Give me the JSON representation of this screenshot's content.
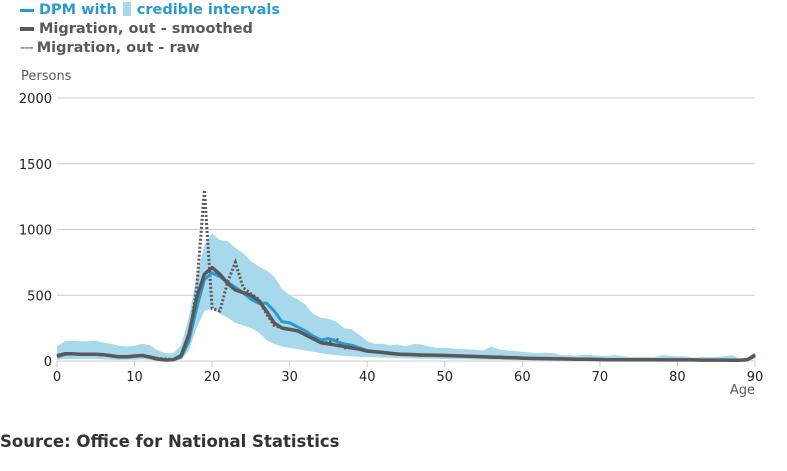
{
  "legend": {
    "dpm_label": "DPM with",
    "ci_label": "credible intervals",
    "smoothed_label": "Migration, out - smoothed",
    "raw_label": "Migration, out - raw",
    "raw_symbol": "---"
  },
  "source": "Source: Office for National Statistics",
  "colors": {
    "dpm": "#2a9bcf",
    "band": "#a8d8ec",
    "smoothed": "#595959",
    "raw": "#595959",
    "grid": "#cccccc"
  },
  "chart_data": {
    "type": "line",
    "ylabel": "Persons",
    "xlabel": "Age",
    "xlim": [
      0,
      90
    ],
    "ylim": [
      0,
      2000
    ],
    "x_ticks": [
      "0",
      "10",
      "20",
      "30",
      "40",
      "50",
      "60",
      "70",
      "80",
      "90"
    ],
    "y_ticks": [
      "0",
      "500",
      "1000",
      "1500",
      "2000"
    ],
    "grid": "horizontal",
    "legend_position": "top-left",
    "x_start": 0,
    "series": [
      {
        "name": "DPM",
        "values": [
          30,
          50,
          55,
          52,
          50,
          50,
          46,
          38,
          30,
          30,
          35,
          40,
          28,
          12,
          5,
          8,
          30,
          150,
          400,
          620,
          670,
          640,
          600,
          560,
          520,
          470,
          440,
          440,
          380,
          300,
          290,
          260,
          230,
          190,
          160,
          170,
          150,
          130,
          120,
          100,
          80,
          72,
          66,
          60,
          55,
          52,
          50,
          48,
          46,
          45,
          43,
          41,
          39,
          37,
          35,
          33,
          31,
          29,
          27,
          25,
          23,
          21,
          20,
          19,
          18,
          17,
          16,
          15,
          14,
          13,
          12,
          11,
          11,
          10,
          10,
          10,
          9,
          9,
          9,
          9,
          8,
          8,
          8,
          8,
          7,
          7,
          7,
          6,
          5,
          10,
          50
        ]
      },
      {
        "name": "credible intervals",
        "upper": [
          110,
          150,
          155,
          150,
          150,
          155,
          140,
          130,
          115,
          110,
          115,
          130,
          120,
          80,
          60,
          60,
          120,
          330,
          640,
          880,
          970,
          920,
          910,
          860,
          820,
          760,
          720,
          690,
          640,
          550,
          500,
          470,
          430,
          360,
          330,
          320,
          300,
          250,
          240,
          200,
          150,
          130,
          130,
          120,
          125,
          110,
          130,
          125,
          110,
          100,
          100,
          95,
          90,
          90,
          85,
          80,
          110,
          90,
          80,
          75,
          70,
          65,
          60,
          62,
          60,
          45,
          45,
          40,
          50,
          45,
          40,
          40,
          45,
          35,
          30,
          30,
          30,
          30,
          45,
          40,
          35,
          35,
          25,
          30,
          30,
          30,
          35,
          45,
          20,
          20,
          60
        ],
        "lower": [
          10,
          15,
          15,
          15,
          15,
          15,
          12,
          10,
          8,
          8,
          10,
          12,
          8,
          3,
          1,
          2,
          10,
          80,
          250,
          380,
          400,
          360,
          330,
          290,
          270,
          250,
          220,
          160,
          130,
          110,
          100,
          90,
          80,
          70,
          60,
          50,
          45,
          40,
          35,
          32,
          30,
          28,
          26,
          24,
          22,
          20,
          18,
          17,
          16,
          15,
          15,
          14,
          13,
          12,
          11,
          10,
          9,
          8,
          7,
          6,
          5,
          5,
          4,
          4,
          3,
          3,
          3,
          2,
          2,
          2,
          2,
          2,
          1,
          1,
          1,
          1,
          1,
          1,
          1,
          1,
          1,
          1,
          1,
          1,
          1,
          1,
          1,
          1,
          0,
          0,
          20
        ]
      },
      {
        "name": "Migration, out - smoothed",
        "values": [
          40,
          55,
          55,
          52,
          52,
          52,
          48,
          40,
          32,
          32,
          38,
          42,
          30,
          15,
          8,
          10,
          40,
          200,
          480,
          660,
          710,
          660,
          590,
          540,
          520,
          500,
          460,
          380,
          290,
          250,
          240,
          230,
          200,
          170,
          140,
          130,
          120,
          110,
          100,
          90,
          75,
          70,
          65,
          58,
          52,
          50,
          48,
          45,
          45,
          44,
          42,
          40,
          38,
          36,
          34,
          32,
          30,
          28,
          26,
          24,
          22,
          20,
          19,
          18,
          17,
          16,
          15,
          14,
          13,
          12,
          11,
          10,
          10,
          10,
          9,
          9,
          9,
          9,
          8,
          8,
          8,
          8,
          8,
          7,
          7,
          7,
          7,
          6,
          5,
          10,
          40
        ]
      },
      {
        "name": "Migration, out - raw",
        "values": [
          40,
          55,
          55,
          52,
          52,
          52,
          48,
          40,
          32,
          32,
          38,
          42,
          30,
          20,
          15,
          12,
          30,
          150,
          550,
          1300,
          400,
          380,
          600,
          750,
          560,
          510,
          470,
          360,
          270,
          250,
          240,
          230,
          200,
          170,
          140,
          140,
          170,
          100,
          100,
          90,
          75,
          70,
          65,
          58,
          52,
          50,
          48,
          45,
          45,
          44,
          42,
          40,
          38,
          36,
          34,
          32,
          30,
          28,
          26,
          24,
          22,
          20,
          19,
          18,
          17,
          16,
          15,
          14,
          13,
          12,
          11,
          10,
          10,
          10,
          9,
          9,
          9,
          9,
          8,
          8,
          8,
          8,
          8,
          7,
          7,
          7,
          7,
          6,
          5,
          10,
          40
        ]
      }
    ]
  }
}
